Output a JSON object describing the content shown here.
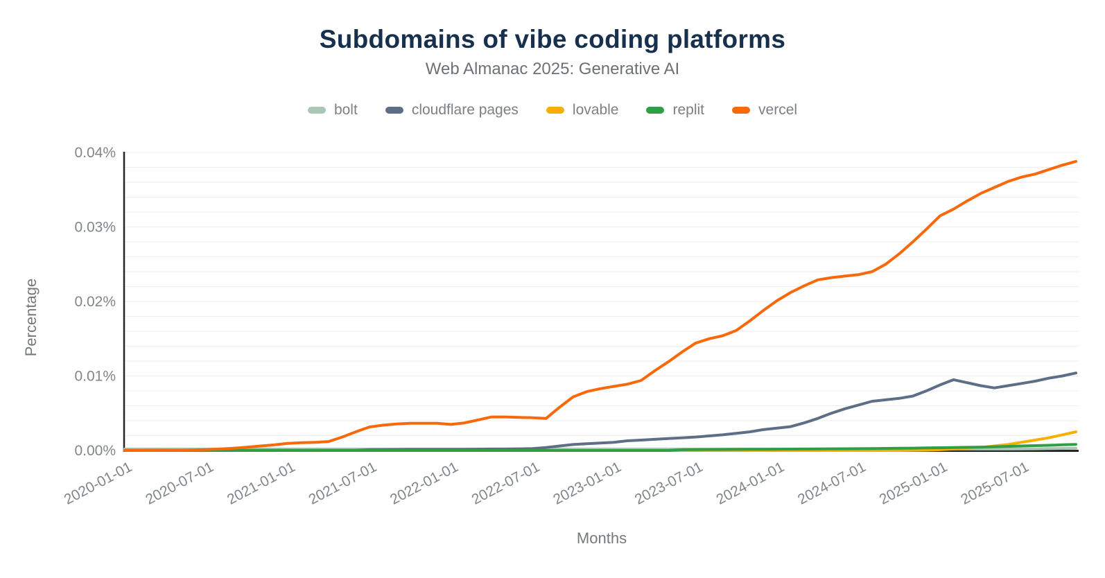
{
  "title": "Subdomains of vibe coding platforms",
  "subtitle": "Web Almanac 2025: Generative AI",
  "chart_data": {
    "type": "line",
    "title": "Subdomains of vibe coding platforms",
    "subtitle": "Web Almanac 2025: Generative AI",
    "xlabel": "Months",
    "ylabel": "Percentage",
    "legend_position": "top",
    "grid": "horizontal",
    "y_max": 0.04,
    "y_minor_step": 0.002,
    "y_ticks": [
      "0.00%",
      "0.01%",
      "0.02%",
      "0.03%",
      "0.04%"
    ],
    "x_tick_labels": [
      "2020-01-01",
      "2020-07-01",
      "2021-01-01",
      "2021-07-01",
      "2022-01-01",
      "2022-07-01",
      "2023-01-01",
      "2023-07-01",
      "2024-01-01",
      "2024-07-01",
      "2025-01-01",
      "2025-07-01"
    ],
    "months": [
      "2020-01",
      "2020-02",
      "2020-03",
      "2020-04",
      "2020-05",
      "2020-06",
      "2020-07",
      "2020-08",
      "2020-09",
      "2020-10",
      "2020-11",
      "2020-12",
      "2021-01",
      "2021-02",
      "2021-03",
      "2021-04",
      "2021-05",
      "2021-06",
      "2021-07",
      "2021-08",
      "2021-09",
      "2021-10",
      "2021-11",
      "2021-12",
      "2022-01",
      "2022-02",
      "2022-03",
      "2022-04",
      "2022-05",
      "2022-06",
      "2022-07",
      "2022-08",
      "2022-09",
      "2022-10",
      "2022-11",
      "2022-12",
      "2023-01",
      "2023-02",
      "2023-03",
      "2023-04",
      "2023-05",
      "2023-06",
      "2023-07",
      "2023-08",
      "2023-09",
      "2023-10",
      "2023-11",
      "2023-12",
      "2024-01",
      "2024-02",
      "2024-03",
      "2024-04",
      "2024-05",
      "2024-06",
      "2024-07",
      "2024-08",
      "2024-09",
      "2024-10",
      "2024-11",
      "2024-12",
      "2025-01",
      "2025-02",
      "2025-03",
      "2025-04",
      "2025-05",
      "2025-06",
      "2025-07",
      "2025-08",
      "2025-09",
      "2025-10",
      "2025-11"
    ],
    "series": [
      {
        "name": "bolt",
        "color": "#a9c7b6",
        "values": [
          0.0002,
          0.0002,
          0.0002,
          0.0002,
          0.0002,
          0.0002,
          0.0002,
          0.0002,
          0.0002,
          0.0002,
          0.0002,
          0.0002,
          0.0002,
          0.0002,
          0.0002,
          0.0002,
          0.0002,
          0.0002,
          0.0002,
          0.0002,
          0.0002,
          0.0002,
          0.0002,
          0.0002,
          0.0002,
          0.0002,
          0.0002,
          0.0002,
          0.0002,
          0.0002,
          0.0002,
          0.0002,
          0.0002,
          0.0002,
          0.0002,
          0.0002,
          0.0002,
          0.0002,
          0.0002,
          0.0002,
          0.0002,
          0.0002,
          0.0002,
          0.0002,
          0.0002,
          0.0002,
          0.0002,
          0.0002,
          0.0002,
          0.0002,
          0.0002,
          0.0002,
          0.0002,
          0.0002,
          0.0002,
          0.0002,
          0.0002,
          0.0002,
          0.0002,
          0.0002,
          0.0002,
          0.0002,
          0.0002,
          0.0002,
          0.0002,
          0.0002,
          0.00021,
          0.00022,
          0.00025,
          0.00028,
          0.0003
        ]
      },
      {
        "name": "cloudflare pages",
        "color": "#5f6e87",
        "values": [
          2e-05,
          2e-05,
          2e-05,
          2e-05,
          2e-05,
          2e-05,
          2e-05,
          2e-05,
          2e-05,
          2e-05,
          2e-05,
          2e-05,
          3e-05,
          3e-05,
          3e-05,
          3e-05,
          3e-05,
          3e-05,
          0.0001,
          0.00012,
          0.00013,
          0.00015,
          0.00015,
          0.00015,
          0.00015,
          0.00015,
          0.00018,
          0.0002,
          0.0002,
          0.00022,
          0.00025,
          0.0004,
          0.0006,
          0.0008,
          0.0009,
          0.001,
          0.0011,
          0.0013,
          0.0014,
          0.0015,
          0.0016,
          0.0017,
          0.0018,
          0.00195,
          0.0021,
          0.0023,
          0.0025,
          0.0028,
          0.003,
          0.0032,
          0.0037,
          0.0043,
          0.005,
          0.0056,
          0.0061,
          0.0066,
          0.0068,
          0.007,
          0.0073,
          0.008,
          0.0088,
          0.0095,
          0.0091,
          0.0087,
          0.0084,
          0.0087,
          0.009,
          0.0093,
          0.0097,
          0.01,
          0.0104
        ]
      },
      {
        "name": "lovable",
        "color": "#f7b000",
        "values": [
          0,
          0,
          0,
          0,
          0,
          0,
          0,
          0,
          0,
          0,
          0,
          0,
          0,
          0,
          0,
          0,
          0,
          0,
          0,
          0,
          0,
          0,
          0,
          0,
          0,
          0,
          0,
          0,
          0,
          0,
          0,
          0,
          0,
          0,
          0,
          0,
          0,
          0,
          0,
          0,
          0,
          0,
          0,
          0,
          0,
          0,
          0,
          0,
          0,
          0,
          0,
          0,
          0,
          0,
          0,
          0,
          0,
          0,
          2e-05,
          5e-05,
          0.0001,
          0.0002,
          0.0003,
          0.0004,
          0.0006,
          0.0008,
          0.0011,
          0.0014,
          0.0017,
          0.0021,
          0.0025
        ]
      },
      {
        "name": "replit",
        "color": "#2f9e44",
        "values": [
          0,
          0,
          0,
          0,
          0,
          0,
          0,
          0,
          0,
          0,
          0,
          0,
          0,
          0,
          0,
          0,
          0,
          0,
          0,
          0,
          0,
          0,
          0,
          0,
          0,
          0,
          0,
          0,
          0,
          0,
          0,
          0,
          0,
          0,
          0,
          0,
          0,
          0,
          0,
          0,
          0,
          0.0001,
          0.00012,
          0.00013,
          0.00014,
          0.00015,
          0.00016,
          0.00017,
          0.00018,
          0.00019,
          0.0002,
          0.00021,
          0.00022,
          0.00023,
          0.00024,
          0.00026,
          0.00028,
          0.0003,
          0.00032,
          0.00034,
          0.00037,
          0.0004,
          0.00043,
          0.00046,
          0.0005,
          0.00055,
          0.0006,
          0.00065,
          0.0007,
          0.00076,
          0.00082
        ]
      },
      {
        "name": "vercel",
        "color": "#f8690c",
        "values": [
          0,
          0,
          1e-05,
          2e-05,
          4e-05,
          7e-05,
          0.00012,
          0.0002,
          0.0003,
          0.00045,
          0.0006,
          0.00075,
          0.00095,
          0.00105,
          0.0011,
          0.0012,
          0.0018,
          0.0025,
          0.00315,
          0.0034,
          0.00355,
          0.00365,
          0.00365,
          0.00365,
          0.0035,
          0.0037,
          0.0041,
          0.0045,
          0.0045,
          0.00445,
          0.0044,
          0.0043,
          0.0058,
          0.0072,
          0.0079,
          0.0083,
          0.0086,
          0.0089,
          0.0094,
          0.0107,
          0.0119,
          0.0132,
          0.0144,
          0.015,
          0.0154,
          0.0161,
          0.0174,
          0.0188,
          0.0201,
          0.0212,
          0.0221,
          0.0229,
          0.0232,
          0.0234,
          0.0236,
          0.024,
          0.025,
          0.0264,
          0.028,
          0.0297,
          0.0315,
          0.0324,
          0.0335,
          0.0345,
          0.0353,
          0.0361,
          0.0367,
          0.0371,
          0.0377,
          0.0383,
          0.0388
        ]
      }
    ]
  }
}
